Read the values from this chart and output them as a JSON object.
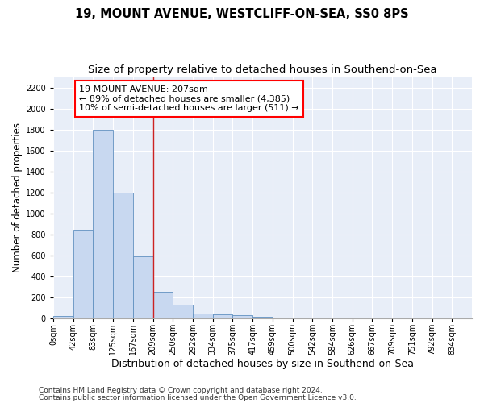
{
  "title_line1": "19, MOUNT AVENUE, WESTCLIFF-ON-SEA, SS0 8PS",
  "title_line2": "Size of property relative to detached houses in Southend-on-Sea",
  "xlabel": "Distribution of detached houses by size in Southend-on-Sea",
  "ylabel": "Number of detached properties",
  "bin_labels": [
    "0sqm",
    "42sqm",
    "83sqm",
    "125sqm",
    "167sqm",
    "209sqm",
    "250sqm",
    "292sqm",
    "334sqm",
    "375sqm",
    "417sqm",
    "459sqm",
    "500sqm",
    "542sqm",
    "584sqm",
    "626sqm",
    "667sqm",
    "709sqm",
    "751sqm",
    "792sqm",
    "834sqm"
  ],
  "bar_heights": [
    25,
    850,
    1800,
    1200,
    590,
    260,
    130,
    50,
    45,
    30,
    15,
    0,
    0,
    0,
    0,
    0,
    0,
    0,
    0,
    0,
    0
  ],
  "bar_color": "#c8d8f0",
  "bar_edge_color": "#6090c0",
  "vline_x_index": 5,
  "vline_color": "#cc2222",
  "annotation_text": "19 MOUNT AVENUE: 207sqm\n← 89% of detached houses are smaller (4,385)\n10% of semi-detached houses are larger (511) →",
  "annotation_box_color": "white",
  "annotation_box_edge_color": "red",
  "ylim": [
    0,
    2300
  ],
  "yticks": [
    0,
    200,
    400,
    600,
    800,
    1000,
    1200,
    1400,
    1600,
    1800,
    2000,
    2200
  ],
  "background_color": "#e8eef8",
  "grid_color": "white",
  "footnote1": "Contains HM Land Registry data © Crown copyright and database right 2024.",
  "footnote2": "Contains public sector information licensed under the Open Government Licence v3.0.",
  "title_fontsize": 10.5,
  "subtitle_fontsize": 9.5,
  "xlabel_fontsize": 9,
  "ylabel_fontsize": 8.5,
  "tick_fontsize": 7,
  "annotation_fontsize": 8,
  "footnote_fontsize": 6.5
}
